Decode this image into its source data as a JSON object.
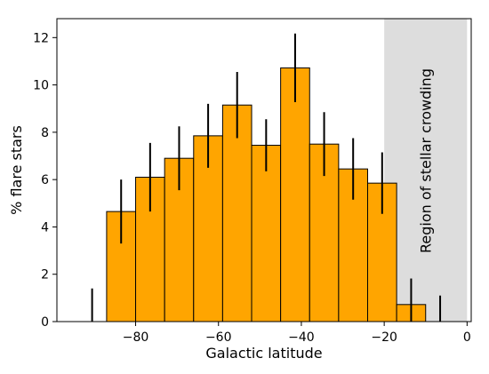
{
  "chart_data": {
    "type": "bar",
    "xlabel": "Galactic latitude",
    "ylabel": "% flare stars",
    "xlim": [
      -99,
      1
    ],
    "ylim": [
      0,
      12.8
    ],
    "xticks": [
      -80,
      -60,
      -40,
      -20,
      0
    ],
    "xtick_labels": [
      "−80",
      "−60",
      "−40",
      "−20",
      "0"
    ],
    "yticks": [
      0,
      2,
      4,
      6,
      8,
      10,
      12
    ],
    "ytick_labels": [
      "0",
      "2",
      "4",
      "6",
      "8",
      "10",
      "12"
    ],
    "bar_color": "#ffa500",
    "edge_color": "#000000",
    "errorbar_color": "#000000",
    "shaded_region": {
      "x0": -20,
      "x1": 0,
      "color": "#dddddd",
      "label": "Region of stellar crowding"
    },
    "bars": [
      {
        "x0": -94,
        "x1": -87,
        "value": 0,
        "err": 1.4
      },
      {
        "x0": -87,
        "x1": -80,
        "value": 4.65,
        "err": 1.35
      },
      {
        "x0": -80,
        "x1": -73,
        "value": 6.1,
        "err": 1.45
      },
      {
        "x0": -73,
        "x1": -66,
        "value": 6.9,
        "err": 1.35
      },
      {
        "x0": -66,
        "x1": -59,
        "value": 7.85,
        "err": 1.35
      },
      {
        "x0": -59,
        "x1": -52,
        "value": 9.15,
        "err": 1.4
      },
      {
        "x0": -52,
        "x1": -45,
        "value": 7.45,
        "err": 1.1
      },
      {
        "x0": -45,
        "x1": -38,
        "value": 10.72,
        "err": 1.45
      },
      {
        "x0": -38,
        "x1": -31,
        "value": 7.5,
        "err": 1.35
      },
      {
        "x0": -31,
        "x1": -24,
        "value": 6.45,
        "err": 1.3
      },
      {
        "x0": -24,
        "x1": -17,
        "value": 5.85,
        "err": 1.3
      },
      {
        "x0": -17,
        "x1": -10,
        "value": 0.72,
        "err": 1.1
      },
      {
        "x0": -10,
        "x1": -3,
        "value": 0,
        "err": 1.1
      }
    ]
  }
}
